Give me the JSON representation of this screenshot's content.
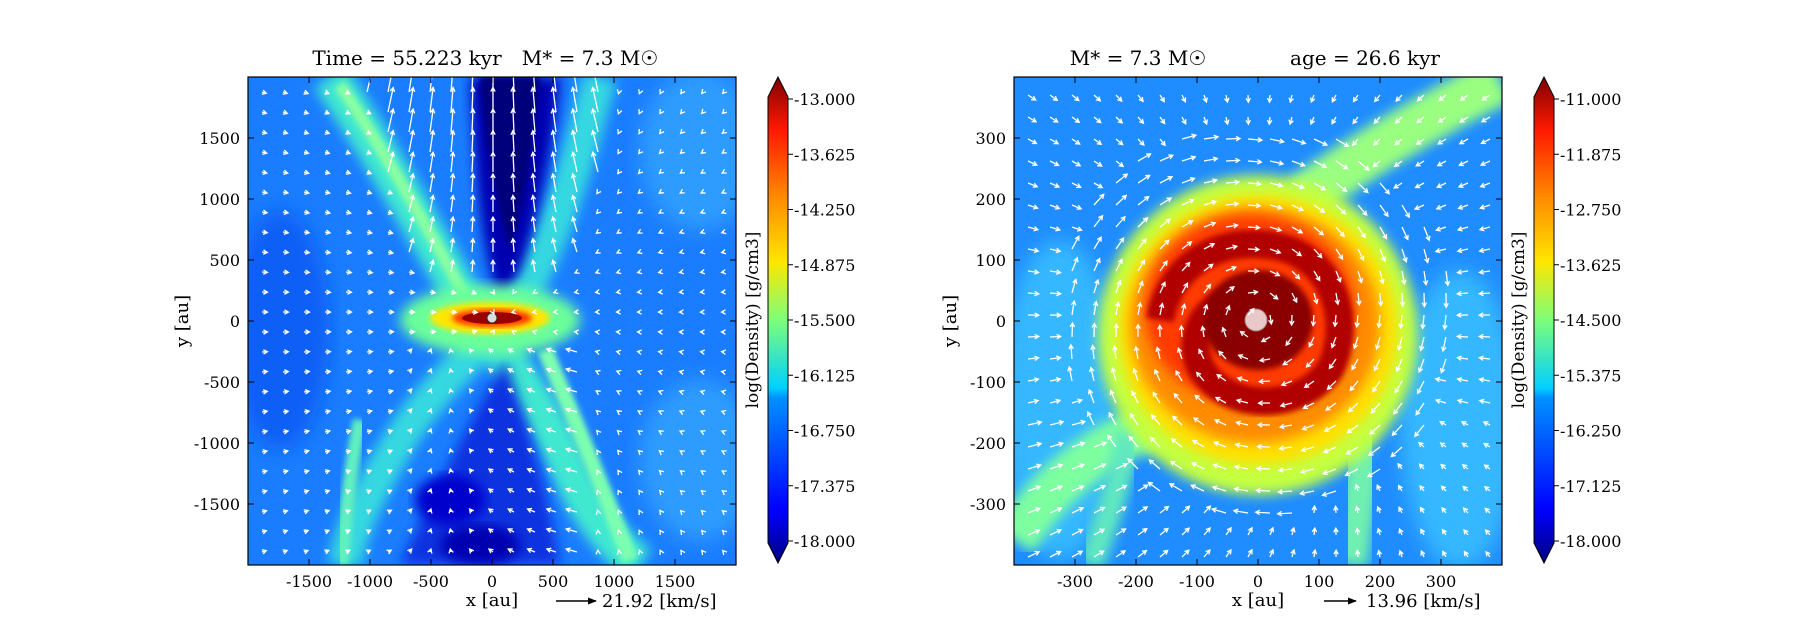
{
  "chart_data": [
    {
      "type": "heatmap",
      "title": "Time = 55.223 kyr    M* = 7.3 M☉",
      "title_parts": {
        "time": "Time = 55.223 kyr",
        "mass": "M* = 7.3 M☉"
      },
      "xlabel": "x [au]",
      "ylabel": "y [au]",
      "xlim": [
        -2000,
        2000
      ],
      "ylim": [
        -2000,
        2000
      ],
      "xticks": [
        -1500,
        -1000,
        -500,
        0,
        500,
        1000,
        1500
      ],
      "yticks": [
        -1500,
        -1000,
        -500,
        0,
        500,
        1000,
        1500
      ],
      "colorbar": {
        "label": "log(Density) [g/cm3]",
        "range": [
          -18.0,
          -13.0
        ],
        "ticks": [
          "-13.000",
          "-13.625",
          "-14.250",
          "-14.875",
          "-15.500",
          "-16.125",
          "-16.750",
          "-17.375",
          "-18.000"
        ],
        "colormap": "jet"
      },
      "vector_key": {
        "label": "21.92 [km/s]",
        "speed": 21.92
      },
      "features": {
        "outflow_cavity": "low-density bipolar cavity along y axis with fast vertical velocity vectors",
        "disk": "dense elongated structure at origin along x axis",
        "filaments": "two crossing moderate-density filaments forming an X shape"
      },
      "grid": false
    },
    {
      "type": "heatmap",
      "title": "M* = 7.3 M☉          age = 26.6 kyr",
      "title_parts": {
        "mass": "M* = 7.3 M☉",
        "age": "age = 26.6 kyr"
      },
      "xlabel": "x [au]",
      "ylabel": "y [au]",
      "xlim": [
        -400,
        400
      ],
      "ylim": [
        -400,
        400
      ],
      "xticks": [
        -300,
        -200,
        -100,
        0,
        100,
        200,
        300
      ],
      "yticks": [
        -300,
        -200,
        -100,
        0,
        100,
        200,
        300
      ],
      "colorbar": {
        "label": "log(Density) [g/cm3]",
        "range": [
          -18.0,
          -11.0
        ],
        "ticks": [
          "-11.000",
          "-11.875",
          "-12.750",
          "-13.625",
          "-14.500",
          "-15.375",
          "-16.250",
          "-17.125",
          "-18.000"
        ],
        "colormap": "jet"
      },
      "vector_key": {
        "label": "13.96 [km/s]",
        "speed": 13.96
      },
      "features": {
        "disk": "dense rotating disk of radius ~200 au with spiral arms",
        "sink": "protostar marker at origin",
        "streamers": "accretion streamers entering from lower-left and lower-right"
      },
      "grid": false
    }
  ]
}
